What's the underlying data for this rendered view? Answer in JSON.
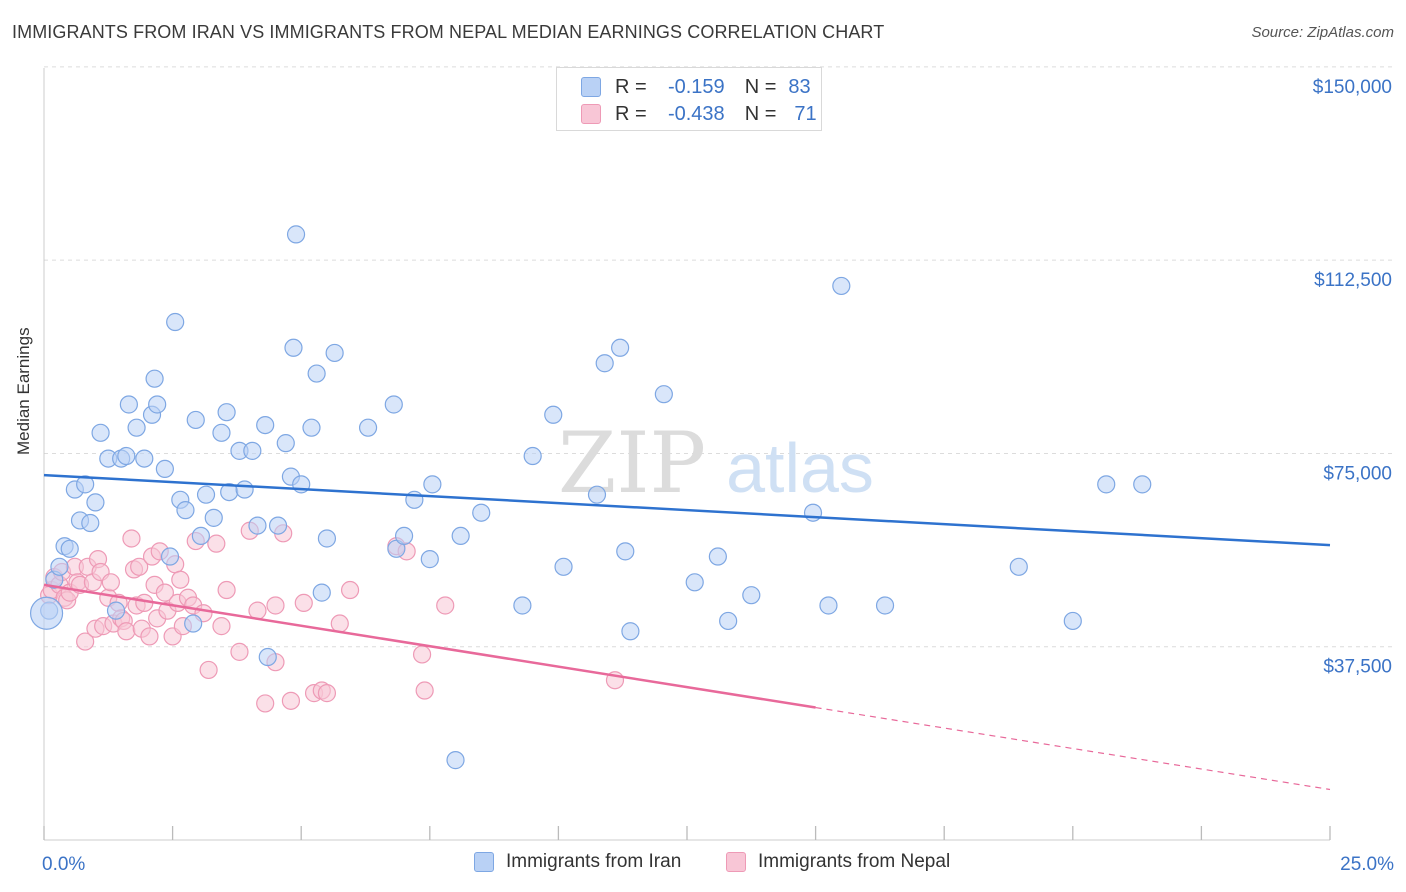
{
  "header": {
    "title": "IMMIGRANTS FROM IRAN VS IMMIGRANTS FROM NEPAL MEDIAN EARNINGS CORRELATION CHART",
    "source": "Source: ZipAtlas.com"
  },
  "watermark": {
    "zip": "ZIP",
    "atlas": "atlas"
  },
  "legend_top": {
    "iran": {
      "r_label": "R =",
      "r_value": "-0.159",
      "n_label": "N =",
      "n_value": "83"
    },
    "nepal": {
      "r_label": "R =",
      "r_value": "-0.438",
      "n_label": "N =",
      "n_value": "71"
    }
  },
  "colors": {
    "iran_fill": "#b9d1f5",
    "iran_stroke": "#7ea7e3",
    "iran_line": "#2e72cf",
    "nepal_fill": "#f8c6d6",
    "nepal_stroke": "#ee9ab6",
    "nepal_line": "#e8699a",
    "grid": "#dcdcdc",
    "tick_label": "#3b73c6"
  },
  "chart_data": {
    "type": "scatter",
    "title": "IMMIGRANTS FROM IRAN VS IMMIGRANTS FROM NEPAL MEDIAN EARNINGS CORRELATION CHART",
    "xlabel": "",
    "ylabel": "Median Earnings",
    "xlim": [
      0,
      25
    ],
    "ylim": [
      0,
      152500
    ],
    "x_tick_labels": [
      "0.0%",
      "25.0%"
    ],
    "y_ticks": [
      37500,
      75000,
      112500,
      150000
    ],
    "y_tick_labels": [
      "$37,500",
      "$75,000",
      "$112,500",
      "$150,000"
    ],
    "grid": true,
    "legend_position": "top-center",
    "series": [
      {
        "name": "Immigrants from Iran",
        "r": -0.159,
        "n": 83,
        "trend": {
          "x": [
            0,
            25
          ],
          "y": [
            70800,
            57200
          ]
        },
        "points": [
          [
            0.1,
            44500
          ],
          [
            0.2,
            50500
          ],
          [
            0.3,
            53000
          ],
          [
            0.4,
            57000
          ],
          [
            0.5,
            56500
          ],
          [
            0.6,
            68000
          ],
          [
            0.7,
            62000
          ],
          [
            0.8,
            69000
          ],
          [
            0.9,
            61500
          ],
          [
            1.0,
            65500
          ],
          [
            1.1,
            79000
          ],
          [
            1.25,
            74000
          ],
          [
            1.4,
            44500
          ],
          [
            1.5,
            74000
          ],
          [
            1.6,
            74500
          ],
          [
            1.65,
            84500
          ],
          [
            1.8,
            80000
          ],
          [
            1.95,
            74000
          ],
          [
            2.1,
            82500
          ],
          [
            2.15,
            89500
          ],
          [
            2.2,
            84500
          ],
          [
            2.35,
            72000
          ],
          [
            2.45,
            55000
          ],
          [
            2.55,
            100500
          ],
          [
            2.65,
            66000
          ],
          [
            2.75,
            64000
          ],
          [
            2.9,
            42000
          ],
          [
            2.95,
            81500
          ],
          [
            3.05,
            59000
          ],
          [
            3.15,
            67000
          ],
          [
            3.3,
            62500
          ],
          [
            3.45,
            79000
          ],
          [
            3.55,
            83000
          ],
          [
            3.6,
            67500
          ],
          [
            3.8,
            75500
          ],
          [
            4.05,
            75500
          ],
          [
            4.15,
            61000
          ],
          [
            4.3,
            80500
          ],
          [
            4.35,
            35500
          ],
          [
            4.55,
            61000
          ],
          [
            4.7,
            77000
          ],
          [
            4.8,
            70500
          ],
          [
            4.85,
            95500
          ],
          [
            4.9,
            117500
          ],
          [
            5.0,
            69000
          ],
          [
            5.2,
            80000
          ],
          [
            5.3,
            90500
          ],
          [
            5.4,
            48000
          ],
          [
            5.5,
            58500
          ],
          [
            5.65,
            94500
          ],
          [
            6.3,
            80000
          ],
          [
            6.8,
            84500
          ],
          [
            6.85,
            56500
          ],
          [
            7.0,
            59000
          ],
          [
            7.2,
            66000
          ],
          [
            7.5,
            54500
          ],
          [
            7.55,
            69000
          ],
          [
            8.1,
            59000
          ],
          [
            8.5,
            63500
          ],
          [
            9.3,
            45500
          ],
          [
            9.5,
            74500
          ],
          [
            9.9,
            82500
          ],
          [
            10.1,
            53000
          ],
          [
            10.75,
            67000
          ],
          [
            10.9,
            92500
          ],
          [
            11.2,
            95500
          ],
          [
            11.3,
            56000
          ],
          [
            11.4,
            40500
          ],
          [
            12.05,
            86500
          ],
          [
            12.65,
            50000
          ],
          [
            13.1,
            55000
          ],
          [
            13.3,
            42500
          ],
          [
            13.75,
            47500
          ],
          [
            14.95,
            63500
          ],
          [
            15.25,
            45500
          ],
          [
            15.5,
            107500
          ],
          [
            16.35,
            45500
          ],
          [
            18.95,
            53000
          ],
          [
            20.0,
            42500
          ],
          [
            20.65,
            69000
          ],
          [
            21.35,
            69000
          ],
          [
            8.0,
            15500
          ],
          [
            3.9,
            68000
          ]
        ]
      },
      {
        "name": "Immigrants from Nepal",
        "r": -0.438,
        "n": 71,
        "trend": {
          "x": [
            0,
            15
          ],
          "y": [
            49500,
            25700
          ]
        },
        "trend_dashed": {
          "x": [
            15,
            25
          ],
          "y": [
            25700,
            9800
          ]
        },
        "points": [
          [
            0.1,
            47500
          ],
          [
            0.15,
            48500
          ],
          [
            0.2,
            51000
          ],
          [
            0.3,
            49500
          ],
          [
            0.35,
            52000
          ],
          [
            0.4,
            47000
          ],
          [
            0.45,
            46500
          ],
          [
            0.5,
            48000
          ],
          [
            0.6,
            53000
          ],
          [
            0.65,
            50000
          ],
          [
            0.7,
            49500
          ],
          [
            0.8,
            38500
          ],
          [
            0.85,
            53000
          ],
          [
            0.95,
            50000
          ],
          [
            1.0,
            41000
          ],
          [
            1.05,
            54500
          ],
          [
            1.1,
            52000
          ],
          [
            1.15,
            41500
          ],
          [
            1.25,
            47000
          ],
          [
            1.3,
            50000
          ],
          [
            1.35,
            42000
          ],
          [
            1.45,
            46000
          ],
          [
            1.5,
            43000
          ],
          [
            1.55,
            42500
          ],
          [
            1.6,
            40500
          ],
          [
            1.7,
            58500
          ],
          [
            1.75,
            52500
          ],
          [
            1.8,
            45500
          ],
          [
            1.85,
            53000
          ],
          [
            1.9,
            41000
          ],
          [
            1.95,
            46000
          ],
          [
            2.05,
            39500
          ],
          [
            2.1,
            55000
          ],
          [
            2.15,
            49500
          ],
          [
            2.2,
            43000
          ],
          [
            2.25,
            56000
          ],
          [
            2.35,
            48000
          ],
          [
            2.4,
            44500
          ],
          [
            2.5,
            39500
          ],
          [
            2.55,
            53500
          ],
          [
            2.6,
            46000
          ],
          [
            2.65,
            50500
          ],
          [
            2.7,
            41500
          ],
          [
            2.8,
            47000
          ],
          [
            2.9,
            45500
          ],
          [
            2.95,
            58000
          ],
          [
            3.1,
            44000
          ],
          [
            3.2,
            33000
          ],
          [
            3.35,
            57500
          ],
          [
            3.45,
            41500
          ],
          [
            3.55,
            48500
          ],
          [
            3.8,
            36500
          ],
          [
            4.0,
            60000
          ],
          [
            4.15,
            44500
          ],
          [
            4.3,
            26500
          ],
          [
            4.5,
            34500
          ],
          [
            4.65,
            59500
          ],
          [
            4.8,
            27000
          ],
          [
            5.05,
            46000
          ],
          [
            5.25,
            28500
          ],
          [
            5.4,
            29000
          ],
          [
            5.5,
            28500
          ],
          [
            5.75,
            42000
          ],
          [
            5.95,
            48500
          ],
          [
            6.85,
            57000
          ],
          [
            7.05,
            56000
          ],
          [
            7.35,
            36000
          ],
          [
            7.4,
            29000
          ],
          [
            7.8,
            45500
          ],
          [
            11.1,
            31000
          ],
          [
            4.5,
            45500
          ]
        ]
      }
    ]
  },
  "legend_bottom": {
    "iran_label": "Immigrants from Iran",
    "nepal_label": "Immigrants from Nepal"
  }
}
